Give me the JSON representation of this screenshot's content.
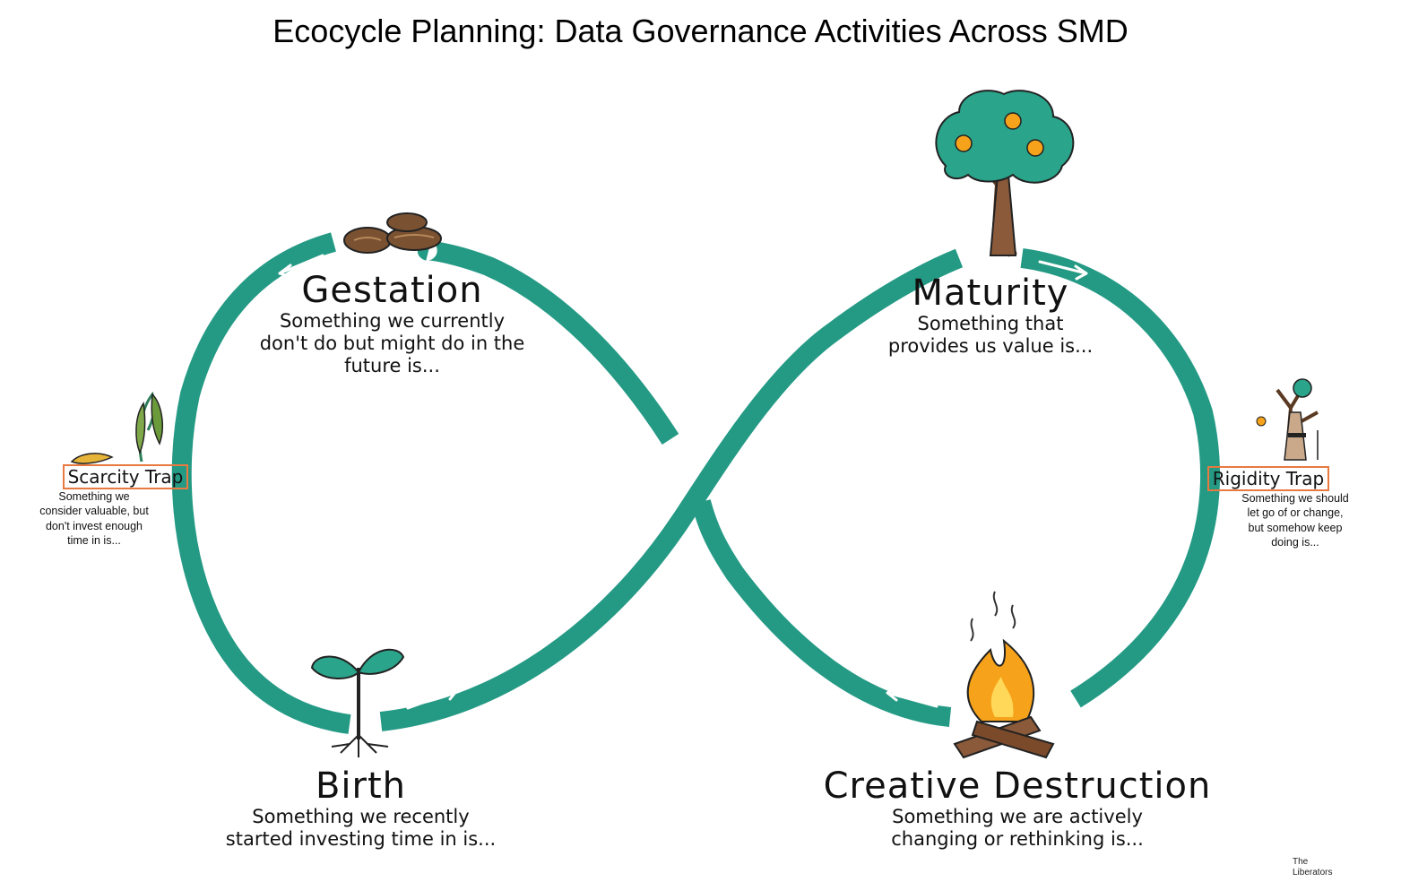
{
  "title": "Ecocycle Planning: Data Governance Activities Across SMD",
  "colors": {
    "loop": "#249a85",
    "trap_border": "#e8793f",
    "leaf": "#2aa48a",
    "fire": "#f7a21b",
    "wood": "#8a5a3a"
  },
  "stages": {
    "gestation": {
      "name": "Gestation",
      "desc": "Something we currently\ndon't do but might do in the\nfuture is...",
      "icon": "seeds-icon"
    },
    "maturity": {
      "name": "Maturity",
      "desc": "Something that\nprovides us value is...",
      "icon": "tree-icon"
    },
    "birth": {
      "name": "Birth",
      "desc": "Something we recently\nstarted investing time in is...",
      "icon": "sprout-icon"
    },
    "creative_destruction": {
      "name": "Creative Destruction",
      "desc": "Something we are actively\nchanging or rethinking is...",
      "icon": "campfire-icon"
    }
  },
  "traps": {
    "scarcity": {
      "name": "Scarcity Trap",
      "desc": "Something we\nconsider valuable, but\ndon't invest enough\ntime in is...",
      "icon": "wilted-plant-icon"
    },
    "rigidity": {
      "name": "Rigidity Trap",
      "desc": "Something we should\nlet go of or change,\nbut somehow keep\ndoing is...",
      "icon": "old-tree-icon"
    }
  },
  "credit": "The\nLiberators"
}
